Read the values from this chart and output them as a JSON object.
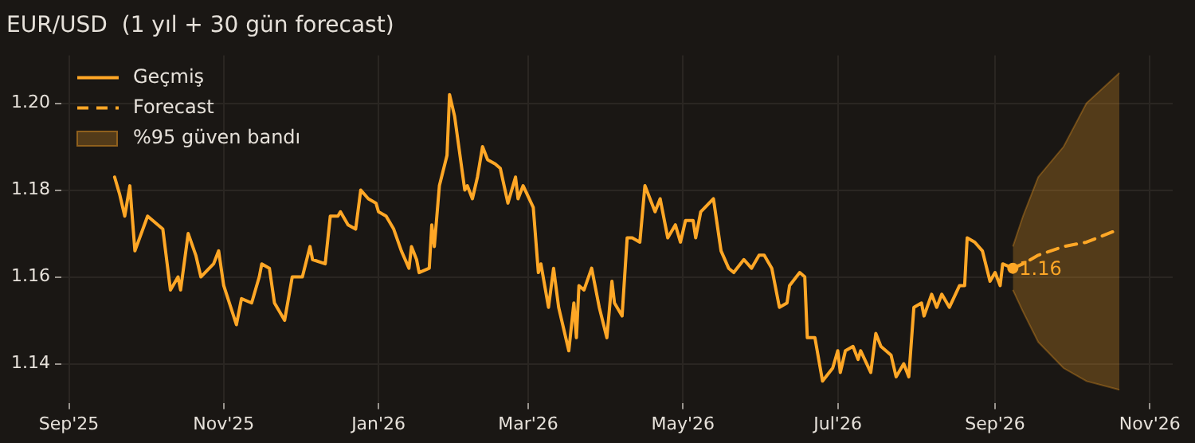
{
  "chart_data": {
    "type": "line",
    "title": "EUR/USD  (1 yıl + 30 gün forecast)",
    "marker": "none",
    "grid": true,
    "legend": "top left",
    "xlim": [
      "2025-08-29",
      "2026-11-10"
    ],
    "xticks": [
      {
        "value": "2025-09-01",
        "label": "Sep'25"
      },
      {
        "value": "2025-11-01",
        "label": "Nov'25"
      },
      {
        "value": "2026-01-01",
        "label": "Jan'26"
      },
      {
        "value": "2026-03-01",
        "label": "Mar'26"
      },
      {
        "value": "2026-05-01",
        "label": "May'26"
      },
      {
        "value": "2026-07-01",
        "label": "Jul'26"
      },
      {
        "value": "2026-09-01",
        "label": "Sep'26"
      },
      {
        "value": "2026-11-01",
        "label": "Nov'26"
      }
    ],
    "ylim": [
      1.131,
      1.211
    ],
    "yticks": [
      {
        "value": 1.14,
        "label": "1.14"
      },
      {
        "value": 1.16,
        "label": "1.16"
      },
      {
        "value": 1.18,
        "label": "1.18"
      },
      {
        "value": 1.2,
        "label": "1.20"
      }
    ],
    "annotations": [
      {
        "text": "1.16",
        "x": "2026-09-08",
        "y": 1.162
      },
      "%95 güven bandı"
    ],
    "series": [
      {
        "name": "Geçmiş",
        "line_style": "solid",
        "color": "#ffa726",
        "x": [
          "2025-09-19",
          "2025-09-21",
          "2025-09-23",
          "2025-09-25",
          "2025-09-27",
          "2025-10-02",
          "2025-10-08",
          "2025-10-11",
          "2025-10-14",
          "2025-10-15",
          "2025-10-18",
          "2025-10-21",
          "2025-10-23",
          "2025-10-28",
          "2025-10-30",
          "2025-11-01",
          "2025-11-06",
          "2025-11-08",
          "2025-11-12",
          "2025-11-15",
          "2025-11-16",
          "2025-11-19",
          "2025-11-21",
          "2025-11-25",
          "2025-11-28",
          "2025-12-02",
          "2025-12-05",
          "2025-12-06",
          "2025-12-11",
          "2025-12-13",
          "2025-12-16",
          "2025-12-17",
          "2025-12-20",
          "2025-12-23",
          "2025-12-25",
          "2025-12-28",
          "2025-12-31",
          "2026-01-01",
          "2026-01-04",
          "2026-01-07",
          "2026-01-10",
          "2026-01-13",
          "2026-01-14",
          "2026-01-16",
          "2026-01-17",
          "2026-01-21",
          "2026-01-22",
          "2026-01-23",
          "2026-01-25",
          "2026-01-28",
          "2026-01-29",
          "2026-01-31",
          "2026-02-04",
          "2026-02-05",
          "2026-02-07",
          "2026-02-09",
          "2026-02-11",
          "2026-02-13",
          "2026-02-16",
          "2026-02-18",
          "2026-02-21",
          "2026-02-24",
          "2026-02-25",
          "2026-02-27",
          "2026-03-03",
          "2026-03-05",
          "2026-03-06",
          "2026-03-09",
          "2026-03-11",
          "2026-03-13",
          "2026-03-17",
          "2026-03-19",
          "2026-03-20",
          "2026-03-21",
          "2026-03-23",
          "2026-03-26",
          "2026-03-29",
          "2026-04-01",
          "2026-04-03",
          "2026-04-04",
          "2026-04-07",
          "2026-04-09",
          "2026-04-11",
          "2026-04-14",
          "2026-04-16",
          "2026-04-20",
          "2026-04-22",
          "2026-04-25",
          "2026-04-28",
          "2026-04-30",
          "2026-05-02",
          "2026-05-05",
          "2026-05-06",
          "2026-05-08",
          "2026-05-13",
          "2026-05-16",
          "2026-05-19",
          "2026-05-21",
          "2026-05-25",
          "2026-05-28",
          "2026-05-31",
          "2026-06-02",
          "2026-06-05",
          "2026-06-08",
          "2026-06-11",
          "2026-06-12",
          "2026-06-16",
          "2026-06-18",
          "2026-06-19",
          "2026-06-22",
          "2026-06-25",
          "2026-06-29",
          "2026-07-01",
          "2026-07-02",
          "2026-07-04",
          "2026-07-07",
          "2026-07-09",
          "2026-07-10",
          "2026-07-14",
          "2026-07-16",
          "2026-07-18",
          "2026-07-22",
          "2026-07-24",
          "2026-07-27",
          "2026-07-29",
          "2026-07-31",
          "2026-08-03",
          "2026-08-04",
          "2026-08-07",
          "2026-08-09",
          "2026-08-11",
          "2026-08-14",
          "2026-08-18",
          "2026-08-20",
          "2026-08-21",
          "2026-08-24",
          "2026-08-27",
          "2026-08-30",
          "2026-09-01",
          "2026-09-03",
          "2026-09-04",
          "2026-09-08"
        ],
        "values": [
          1.183,
          1.179,
          1.174,
          1.181,
          1.166,
          1.174,
          1.171,
          1.157,
          1.16,
          1.157,
          1.17,
          1.165,
          1.16,
          1.163,
          1.166,
          1.158,
          1.149,
          1.155,
          1.154,
          1.16,
          1.163,
          1.162,
          1.154,
          1.15,
          1.16,
          1.16,
          1.167,
          1.164,
          1.163,
          1.174,
          1.174,
          1.175,
          1.172,
          1.171,
          1.18,
          1.178,
          1.177,
          1.175,
          1.174,
          1.171,
          1.166,
          1.162,
          1.167,
          1.164,
          1.161,
          1.162,
          1.172,
          1.167,
          1.181,
          1.188,
          1.202,
          1.197,
          1.18,
          1.181,
          1.178,
          1.183,
          1.19,
          1.187,
          1.186,
          1.185,
          1.177,
          1.183,
          1.178,
          1.181,
          1.176,
          1.161,
          1.163,
          1.153,
          1.162,
          1.153,
          1.143,
          1.154,
          1.146,
          1.158,
          1.157,
          1.162,
          1.153,
          1.146,
          1.159,
          1.154,
          1.151,
          1.169,
          1.169,
          1.168,
          1.181,
          1.175,
          1.178,
          1.169,
          1.172,
          1.168,
          1.173,
          1.173,
          1.169,
          1.175,
          1.178,
          1.166,
          1.162,
          1.161,
          1.164,
          1.162,
          1.165,
          1.165,
          1.162,
          1.153,
          1.154,
          1.158,
          1.161,
          1.16,
          1.146,
          1.146,
          1.136,
          1.139,
          1.143,
          1.138,
          1.143,
          1.144,
          1.141,
          1.143,
          1.138,
          1.147,
          1.144,
          1.142,
          1.137,
          1.14,
          1.137,
          1.153,
          1.154,
          1.151,
          1.156,
          1.153,
          1.156,
          1.153,
          1.158,
          1.158,
          1.169,
          1.168,
          1.166,
          1.159,
          1.161,
          1.158,
          1.163,
          1.162
        ]
      },
      {
        "name": "Forecast",
        "line_style": "dashed",
        "color": "#ffa726",
        "x": [
          "2026-09-08",
          "2026-09-12",
          "2026-09-18",
          "2026-09-28",
          "2026-10-07",
          "2026-10-20"
        ],
        "values": [
          1.162,
          1.163,
          1.165,
          1.167,
          1.168,
          1.171
        ],
        "lower": [
          1.157,
          1.152,
          1.145,
          1.139,
          1.136,
          1.134
        ],
        "upper": [
          1.167,
          1.174,
          1.183,
          1.19,
          1.2,
          1.207
        ]
      }
    ]
  }
}
